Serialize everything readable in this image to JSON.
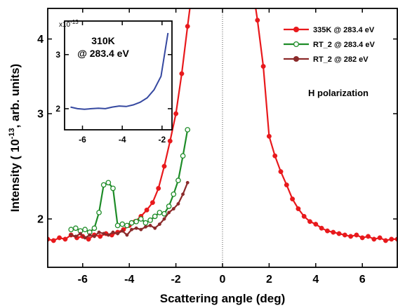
{
  "chart_data": [
    {
      "type": "line",
      "xlabel": "Scattering angle (deg)",
      "ylabel": [
        "Intensity ( 10",
        "-13",
        ", arb. units)"
      ],
      "annotation": "H polarization",
      "xlim": [
        -7.5,
        7.5
      ],
      "ylim": [
        1.66,
        4.5
      ],
      "log_y": true,
      "xticks": [
        -6,
        -4,
        -2,
        0,
        2,
        4,
        6
      ],
      "yticks": [
        2,
        3,
        4
      ],
      "zero_line": true,
      "legend": "upper right",
      "series": [
        {
          "name": "335K @ 283.4 eV",
          "color": "#e8191c",
          "marker": "filled",
          "x": [
            -7.5,
            -7.25,
            -7,
            -6.75,
            -6.5,
            -6.25,
            -6,
            -5.75,
            -5.5,
            -5.25,
            -5,
            -4.75,
            -4.5,
            -4.25,
            -4,
            -3.75,
            -3.5,
            -3.25,
            -3,
            -2.75,
            -2.5,
            -2.25,
            -2,
            -1.75,
            -1.5,
            -1.25,
            0,
            1.25,
            1.5,
            1.75,
            2,
            2.25,
            2.5,
            2.75,
            3,
            3.25,
            3.5,
            3.75,
            4,
            4.25,
            4.5,
            4.75,
            5,
            5.25,
            5.5,
            5.75,
            6,
            6.25,
            6.5,
            6.75,
            7,
            7.25,
            7.5
          ],
          "values": [
            1.85,
            1.84,
            1.86,
            1.85,
            1.88,
            1.86,
            1.87,
            1.85,
            1.88,
            1.87,
            1.89,
            1.88,
            1.9,
            1.92,
            1.95,
            1.98,
            2.02,
            2.07,
            2.13,
            2.25,
            2.45,
            2.7,
            3.0,
            3.5,
            4.2,
            5.0,
            null,
            5.0,
            4.3,
            3.6,
            2.75,
            2.55,
            2.4,
            2.28,
            2.16,
            2.08,
            2.02,
            1.98,
            1.96,
            1.93,
            1.91,
            1.9,
            1.89,
            1.88,
            1.87,
            1.88,
            1.86,
            1.87,
            1.85,
            1.86,
            1.84,
            1.85,
            1.85
          ]
        },
        {
          "name": "RT_2 @ 283.4 eV",
          "color": "#1e8c28",
          "marker": "open",
          "x": [
            -6.5,
            -6.3,
            -6.1,
            -5.9,
            -5.7,
            -5.5,
            -5.3,
            -5.1,
            -4.9,
            -4.7,
            -4.5,
            -4.3,
            -4.1,
            -3.9,
            -3.7,
            -3.5,
            -3.3,
            -3.1,
            -2.9,
            -2.7,
            -2.5,
            -2.3,
            -2.1,
            -1.9,
            -1.7,
            -1.5
          ],
          "values": [
            1.92,
            1.93,
            1.91,
            1.92,
            1.9,
            1.93,
            2.05,
            2.28,
            2.3,
            2.25,
            1.95,
            1.96,
            1.95,
            1.97,
            1.98,
            2.0,
            1.97,
            1.99,
            2.02,
            2.05,
            2.04,
            2.1,
            2.2,
            2.32,
            2.55,
            2.82
          ]
        },
        {
          "name": "RT_2 @ 282 eV",
          "color": "#8b2a2a",
          "marker": "small",
          "x": [
            -6.5,
            -6.3,
            -6.1,
            -5.9,
            -5.7,
            -5.5,
            -5.3,
            -5.1,
            -4.9,
            -4.7,
            -4.5,
            -4.3,
            -4.1,
            -3.9,
            -3.7,
            -3.5,
            -3.3,
            -3.1,
            -2.9,
            -2.7,
            -2.5,
            -2.3,
            -2.1,
            -1.9,
            -1.7,
            -1.5
          ],
          "values": [
            1.88,
            1.87,
            1.89,
            1.86,
            1.88,
            1.87,
            1.9,
            1.89,
            1.88,
            1.9,
            1.89,
            1.91,
            1.88,
            1.92,
            1.93,
            1.92,
            1.94,
            1.95,
            1.93,
            1.96,
            2.0,
            2.05,
            2.08,
            2.12,
            2.2,
            2.3
          ]
        }
      ]
    },
    {
      "type": "line",
      "title": [
        "310K",
        "@ 283.4 eV"
      ],
      "scale_label": [
        "x10",
        "-13"
      ],
      "xlim": [
        -6.9,
        -1.5
      ],
      "ylim": [
        1.61,
        3.62
      ],
      "log_y": false,
      "xticks": [
        -6,
        -4,
        -2
      ],
      "yticks": [
        2,
        3
      ],
      "series": [
        {
          "color": "#3548a0",
          "marker": "none",
          "x": [
            -6.6,
            -6.25,
            -5.9,
            -5.55,
            -5.2,
            -4.85,
            -4.5,
            -4.15,
            -3.8,
            -3.45,
            -3.1,
            -2.75,
            -2.4,
            -2.05,
            -1.7
          ],
          "values": [
            2.03,
            2.0,
            1.99,
            2.0,
            2.01,
            2.0,
            2.03,
            2.05,
            2.04,
            2.07,
            2.12,
            2.2,
            2.35,
            2.6,
            3.4
          ]
        }
      ]
    }
  ]
}
